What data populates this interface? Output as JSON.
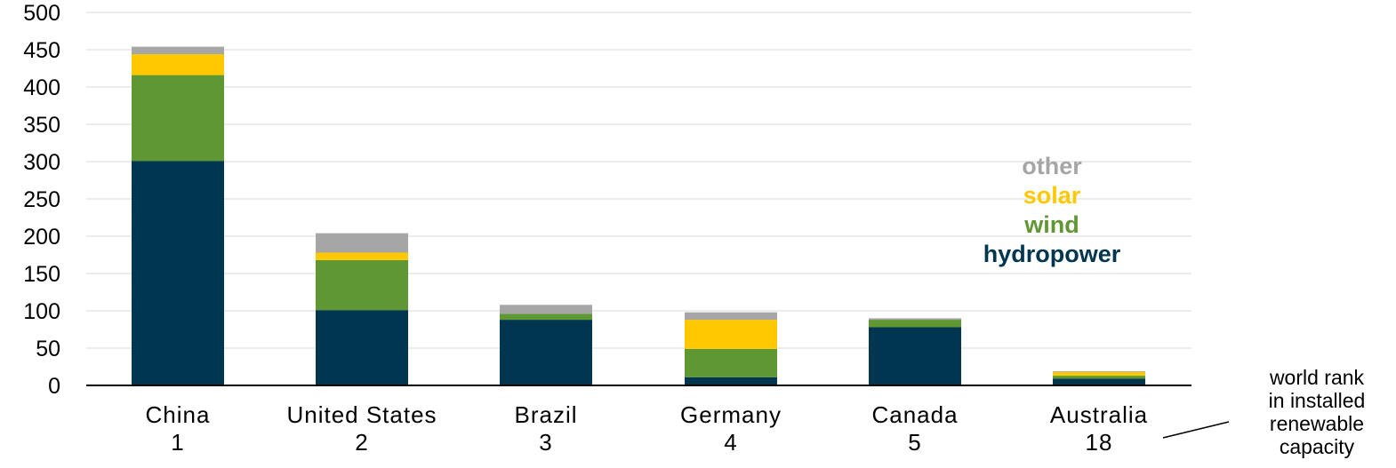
{
  "chart_data": {
    "type": "bar",
    "stacked": true,
    "categories": [
      "China",
      "United States",
      "Brazil",
      "Germany",
      "Canada",
      "Australia"
    ],
    "world_ranks": [
      "1",
      "2",
      "3",
      "4",
      "5",
      "18"
    ],
    "series": [
      {
        "name": "hydropower",
        "color": "#00364f",
        "values": [
          301,
          101,
          88,
          11,
          78,
          9
        ]
      },
      {
        "name": "wind",
        "color": "#5f9732",
        "values": [
          115,
          67,
          8,
          38,
          10,
          4
        ]
      },
      {
        "name": "solar",
        "color": "#ffc800",
        "values": [
          28,
          10,
          0,
          39,
          0,
          5
        ]
      },
      {
        "name": "other",
        "color": "#a6a6a6",
        "values": [
          10,
          26,
          12,
          10,
          2,
          1
        ]
      }
    ],
    "ylim": [
      0,
      500
    ],
    "yticks": [
      0,
      50,
      100,
      150,
      200,
      250,
      300,
      350,
      400,
      450,
      500
    ],
    "grid": true,
    "legend_placement": "right, stacked top-to-bottom in reverse series order",
    "annotation": [
      "world rank",
      "in installed",
      "renewable",
      "capacity"
    ]
  }
}
